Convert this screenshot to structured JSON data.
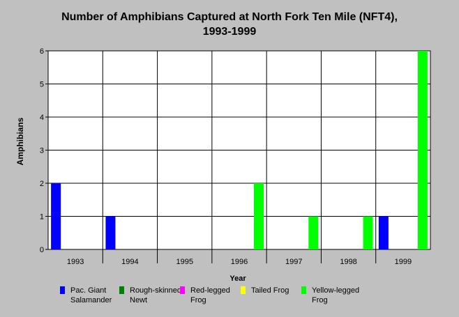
{
  "chart_data": {
    "type": "bar",
    "title_line1": "Number of Amphibians Captured at North Fork Ten Mile (NFT4),",
    "title_line2": "1993-1999",
    "xlabel": "Year",
    "ylabel": "Amphibians",
    "ylim": [
      0,
      6
    ],
    "yticks": [
      "0",
      "1",
      "2",
      "3",
      "4",
      "5",
      "6"
    ],
    "categories": [
      "1993",
      "1994",
      "1995",
      "1996",
      "1997",
      "1998",
      "1999"
    ],
    "grid": true,
    "legend_position": "bottom",
    "series": [
      {
        "name": "Pac. Giant Salamander",
        "label_display": "Pac. Giant\nSalamander",
        "color": "#0000ff",
        "values": [
          2,
          1,
          0,
          0,
          0,
          0,
          1
        ]
      },
      {
        "name": "Rough-skinned Newt",
        "label_display": "Rough-skinned\nNewt",
        "color": "#008000",
        "values": [
          0,
          0,
          0,
          0,
          0,
          0,
          0
        ]
      },
      {
        "name": "Red-legged Frog",
        "label_display": "Red-legged\nFrog",
        "color": "#ff00ff",
        "values": [
          0,
          0,
          0,
          0,
          0,
          0,
          0
        ]
      },
      {
        "name": "Tailed Frog",
        "label_display": "Tailed Frog",
        "color": "#ffff00",
        "values": [
          0,
          0,
          0,
          0,
          0,
          0,
          0
        ]
      },
      {
        "name": "Yellow-legged Frog",
        "label_display": "Yellow-legged\nFrog",
        "color": "#00ff00",
        "values": [
          0,
          0,
          0,
          2,
          1,
          1,
          6
        ]
      }
    ]
  }
}
